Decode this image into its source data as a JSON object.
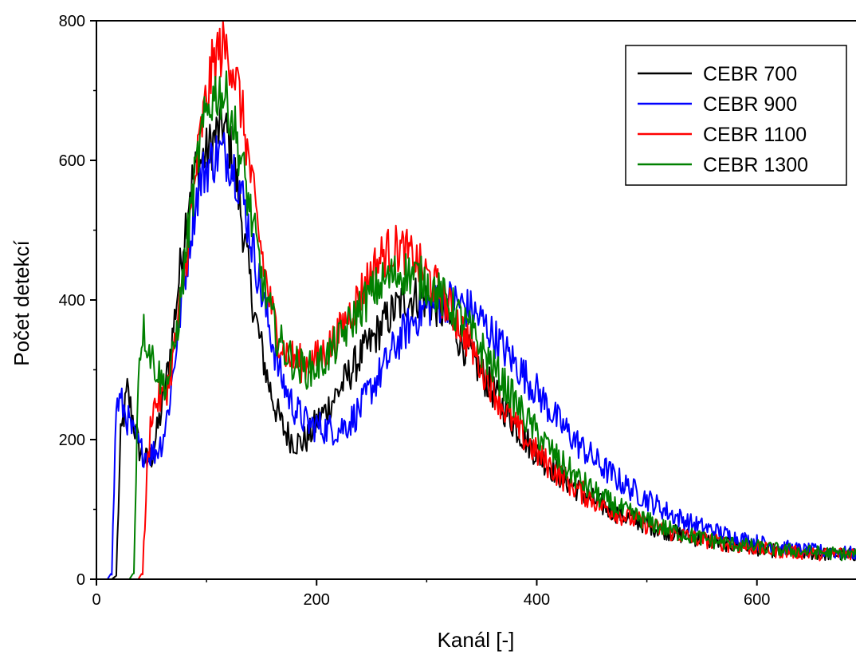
{
  "chart_data": {
    "type": "line",
    "title": "",
    "xlabel": "Kanál [-]",
    "ylabel": "Počet detekcí",
    "xlim": [
      0,
      690
    ],
    "ylim": [
      0,
      800
    ],
    "x_ticks": [
      0,
      200,
      400,
      600
    ],
    "y_ticks": [
      0,
      200,
      400,
      600,
      800
    ],
    "x_tick_labels": [
      "0",
      "200",
      "400",
      "600"
    ],
    "y_tick_labels": [
      "0",
      "200",
      "400",
      "600",
      "800"
    ],
    "grid": false,
    "legend_position": "top-right",
    "series": [
      {
        "name": "CEBR 700",
        "color": "#000000",
        "x": [
          0,
          14,
          18,
          22,
          28,
          35,
          40,
          45,
          50,
          55,
          60,
          65,
          70,
          75,
          80,
          85,
          90,
          95,
          100,
          105,
          110,
          115,
          120,
          125,
          130,
          135,
          140,
          145,
          150,
          155,
          160,
          165,
          170,
          175,
          180,
          185,
          190,
          195,
          200,
          210,
          220,
          230,
          240,
          250,
          260,
          270,
          280,
          290,
          300,
          310,
          320,
          330,
          340,
          350,
          360,
          370,
          380,
          390,
          400,
          420,
          440,
          460,
          480,
          500,
          520,
          540,
          560,
          580,
          600,
          620,
          640,
          660,
          690
        ],
        "y": [
          0,
          0,
          5,
          200,
          270,
          215,
          180,
          170,
          175,
          210,
          250,
          300,
          360,
          430,
          500,
          560,
          585,
          600,
          610,
          625,
          640,
          650,
          630,
          590,
          540,
          480,
          420,
          370,
          330,
          290,
          260,
          235,
          215,
          205,
          198,
          195,
          200,
          210,
          225,
          245,
          270,
          295,
          320,
          340,
          365,
          385,
          400,
          405,
          400,
          390,
          370,
          345,
          320,
          295,
          270,
          245,
          220,
          200,
          180,
          150,
          125,
          105,
          90,
          78,
          68,
          60,
          54,
          48,
          44,
          40,
          38,
          36,
          35
        ]
      },
      {
        "name": "CEBR 900",
        "color": "#0000ff",
        "x": [
          0,
          10,
          14,
          18,
          22,
          28,
          35,
          40,
          45,
          50,
          55,
          60,
          65,
          70,
          75,
          80,
          85,
          90,
          95,
          100,
          105,
          110,
          115,
          120,
          125,
          130,
          135,
          140,
          145,
          150,
          155,
          160,
          165,
          170,
          175,
          180,
          185,
          190,
          195,
          200,
          210,
          220,
          230,
          240,
          250,
          260,
          270,
          280,
          290,
          300,
          310,
          320,
          330,
          340,
          350,
          360,
          370,
          380,
          390,
          400,
          420,
          440,
          460,
          480,
          500,
          520,
          540,
          560,
          580,
          600,
          620,
          640,
          660,
          690
        ],
        "y": [
          0,
          0,
          10,
          250,
          255,
          230,
          200,
          185,
          180,
          180,
          185,
          200,
          240,
          300,
          370,
          430,
          490,
          540,
          575,
          590,
          600,
          610,
          610,
          605,
          590,
          565,
          530,
          490,
          450,
          410,
          375,
          340,
          305,
          280,
          260,
          245,
          235,
          225,
          220,
          220,
          215,
          215,
          225,
          245,
          275,
          300,
          330,
          355,
          375,
          390,
          395,
          400,
          395,
          385,
          370,
          350,
          330,
          310,
          290,
          270,
          225,
          190,
          160,
          135,
          115,
          95,
          80,
          70,
          60,
          53,
          47,
          42,
          40,
          37
        ]
      },
      {
        "name": "CEBR 1100",
        "color": "#ff0000",
        "x": [
          0,
          38,
          42,
          46,
          50,
          55,
          60,
          65,
          70,
          75,
          80,
          85,
          90,
          95,
          100,
          105,
          110,
          115,
          120,
          125,
          130,
          135,
          140,
          145,
          150,
          155,
          160,
          165,
          170,
          175,
          180,
          185,
          190,
          195,
          200,
          210,
          220,
          230,
          240,
          250,
          260,
          270,
          280,
          290,
          300,
          310,
          320,
          330,
          340,
          350,
          360,
          370,
          380,
          390,
          400,
          420,
          440,
          460,
          480,
          500,
          520,
          540,
          560,
          580,
          600,
          620,
          640,
          660,
          690
        ],
        "y": [
          0,
          0,
          10,
          150,
          240,
          255,
          260,
          280,
          320,
          380,
          440,
          510,
          580,
          640,
          690,
          730,
          755,
          760,
          755,
          730,
          690,
          640,
          580,
          520,
          470,
          420,
          380,
          350,
          330,
          320,
          315,
          310,
          310,
          312,
          315,
          330,
          350,
          380,
          410,
          440,
          465,
          475,
          470,
          455,
          435,
          415,
          390,
          365,
          335,
          305,
          275,
          245,
          220,
          200,
          180,
          150,
          125,
          105,
          90,
          78,
          68,
          60,
          54,
          48,
          44,
          40,
          38,
          36,
          38
        ]
      },
      {
        "name": "CEBR 1300",
        "color": "#008000",
        "x": [
          0,
          30,
          34,
          38,
          42,
          46,
          50,
          55,
          60,
          65,
          70,
          75,
          80,
          85,
          90,
          95,
          100,
          105,
          110,
          115,
          120,
          125,
          130,
          135,
          140,
          145,
          150,
          155,
          160,
          165,
          170,
          175,
          180,
          185,
          190,
          195,
          200,
          210,
          220,
          230,
          240,
          250,
          260,
          270,
          280,
          290,
          300,
          310,
          320,
          330,
          340,
          350,
          360,
          370,
          380,
          390,
          400,
          420,
          440,
          460,
          480,
          500,
          520,
          540,
          560,
          580,
          600,
          620,
          640,
          660,
          690
        ],
        "y": [
          0,
          0,
          10,
          300,
          360,
          340,
          320,
          300,
          280,
          285,
          320,
          380,
          450,
          520,
          580,
          630,
          665,
          690,
          700,
          695,
          680,
          650,
          610,
          570,
          525,
          480,
          435,
          400,
          370,
          345,
          330,
          320,
          310,
          305,
          300,
          300,
          305,
          320,
          340,
          365,
          390,
          410,
          425,
          435,
          440,
          435,
          425,
          410,
          395,
          375,
          355,
          330,
          305,
          280,
          255,
          230,
          210,
          170,
          140,
          115,
          97,
          83,
          71,
          62,
          55,
          50,
          46,
          42,
          40,
          38,
          35
        ]
      }
    ]
  }
}
